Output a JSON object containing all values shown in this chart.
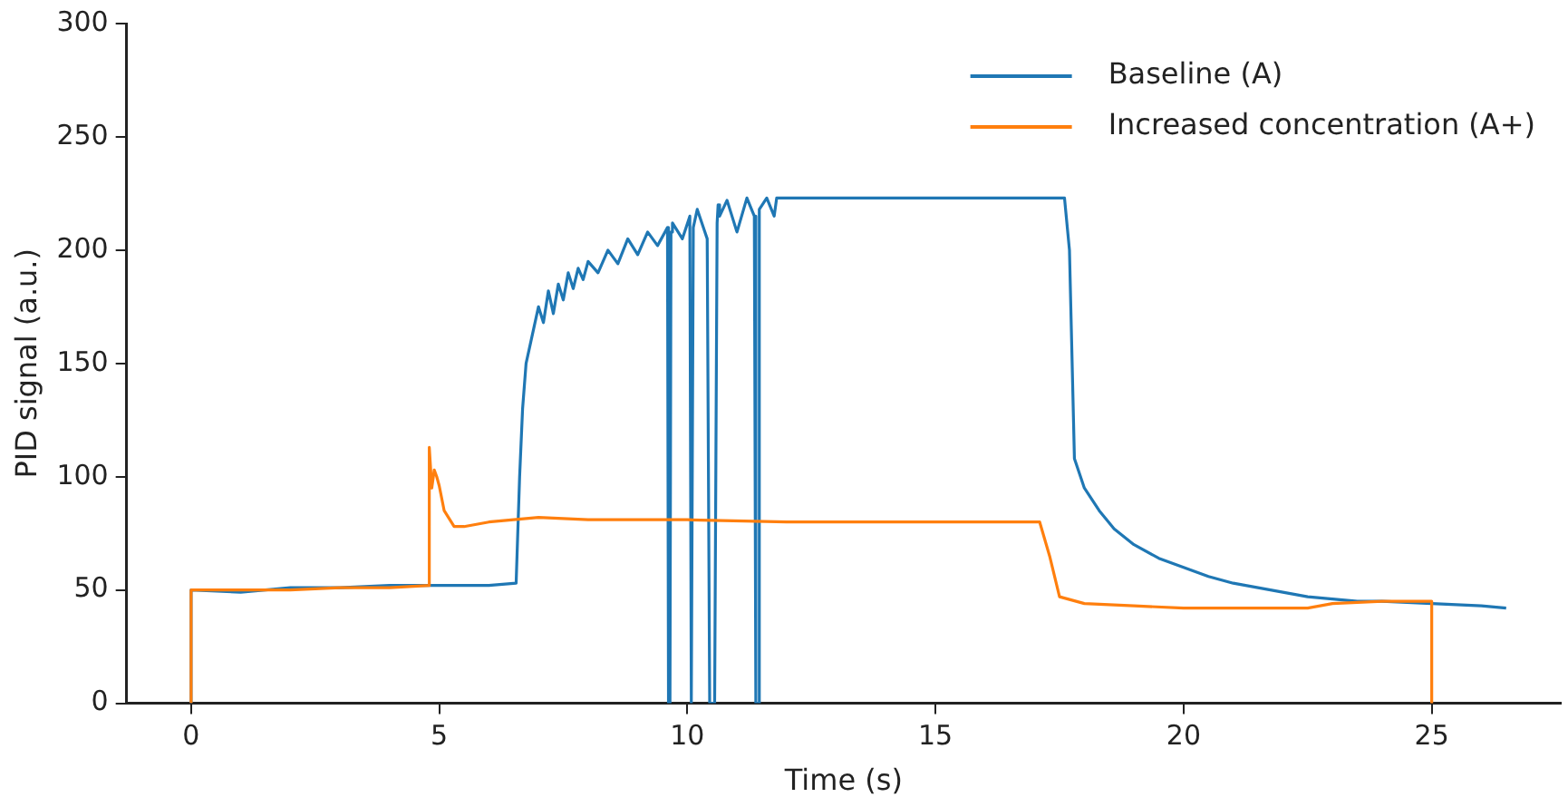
{
  "chart_data": {
    "type": "line",
    "xlabel": "Time (s)",
    "ylabel": "PID signal (a.u.)",
    "xlim": [
      -1.3,
      27.6
    ],
    "xticks": [
      0,
      5,
      10,
      15,
      20,
      25
    ],
    "ylim": [
      0,
      300
    ],
    "yticks": [
      0,
      50,
      100,
      150,
      200,
      250,
      300
    ],
    "grid": false,
    "legend": "top right",
    "marker": "none",
    "line_style": "solid",
    "series": [
      {
        "name": "Baseline (A)",
        "color": "#1f77b4",
        "x": [
          0,
          0,
          1,
          2,
          3,
          4,
          5,
          6,
          6.55,
          6.62,
          6.68,
          6.75,
          6.85,
          7.0,
          7.1,
          7.2,
          7.3,
          7.4,
          7.5,
          7.6,
          7.7,
          7.8,
          7.9,
          8.0,
          8.2,
          8.4,
          8.6,
          8.8,
          9.0,
          9.2,
          9.4,
          9.6,
          9.62,
          9.65,
          9.67,
          9.7,
          9.9,
          10.05,
          10.08,
          10.1,
          10.12,
          10.2,
          10.4,
          10.45,
          10.48,
          10.52,
          10.55,
          10.6,
          10.62,
          10.65,
          10.8,
          11.0,
          11.2,
          11.35,
          11.38,
          11.42,
          11.45,
          11.6,
          11.75,
          11.8,
          17.6,
          17.7,
          17.8,
          18.0,
          18.3,
          18.6,
          19.0,
          19.5,
          20.0,
          20.5,
          21.0,
          21.5,
          22.0,
          22.5,
          23.0,
          23.5,
          24.0,
          25.0,
          26.0,
          26.5
        ],
        "values": [
          0,
          50,
          49,
          51,
          51,
          52,
          52,
          52,
          53,
          100,
          130,
          150,
          160,
          175,
          168,
          182,
          172,
          185,
          178,
          190,
          183,
          192,
          187,
          195,
          190,
          200,
          194,
          205,
          198,
          208,
          202,
          210,
          0,
          0,
          208,
          212,
          205,
          215,
          0,
          0,
          210,
          218,
          205,
          0,
          0,
          0,
          0,
          212,
          220,
          215,
          222,
          208,
          223,
          215,
          0,
          0,
          218,
          223,
          215,
          223,
          223,
          200,
          108,
          95,
          85,
          77,
          70,
          64,
          60,
          56,
          53,
          51,
          49,
          47,
          46,
          45,
          45,
          44,
          43,
          42
        ]
      },
      {
        "name": "Increased concentration (A+)",
        "color": "#ff7f0e",
        "x": [
          0,
          0,
          1,
          2,
          3,
          4,
          4.8,
          4.8,
          4.85,
          4.9,
          4.95,
          5.0,
          5.1,
          5.3,
          5.5,
          6,
          7,
          8,
          10,
          12,
          15,
          17.1,
          17.3,
          17.5,
          18,
          19,
          20,
          22.5,
          23,
          24,
          25,
          25
        ],
        "values": [
          0,
          50,
          50,
          50,
          51,
          51,
          52,
          113,
          95,
          103,
          100,
          96,
          85,
          78,
          78,
          80,
          82,
          81,
          81,
          80,
          80,
          80,
          65,
          47,
          44,
          43,
          42,
          42,
          44,
          45,
          45,
          0
        ]
      }
    ]
  }
}
